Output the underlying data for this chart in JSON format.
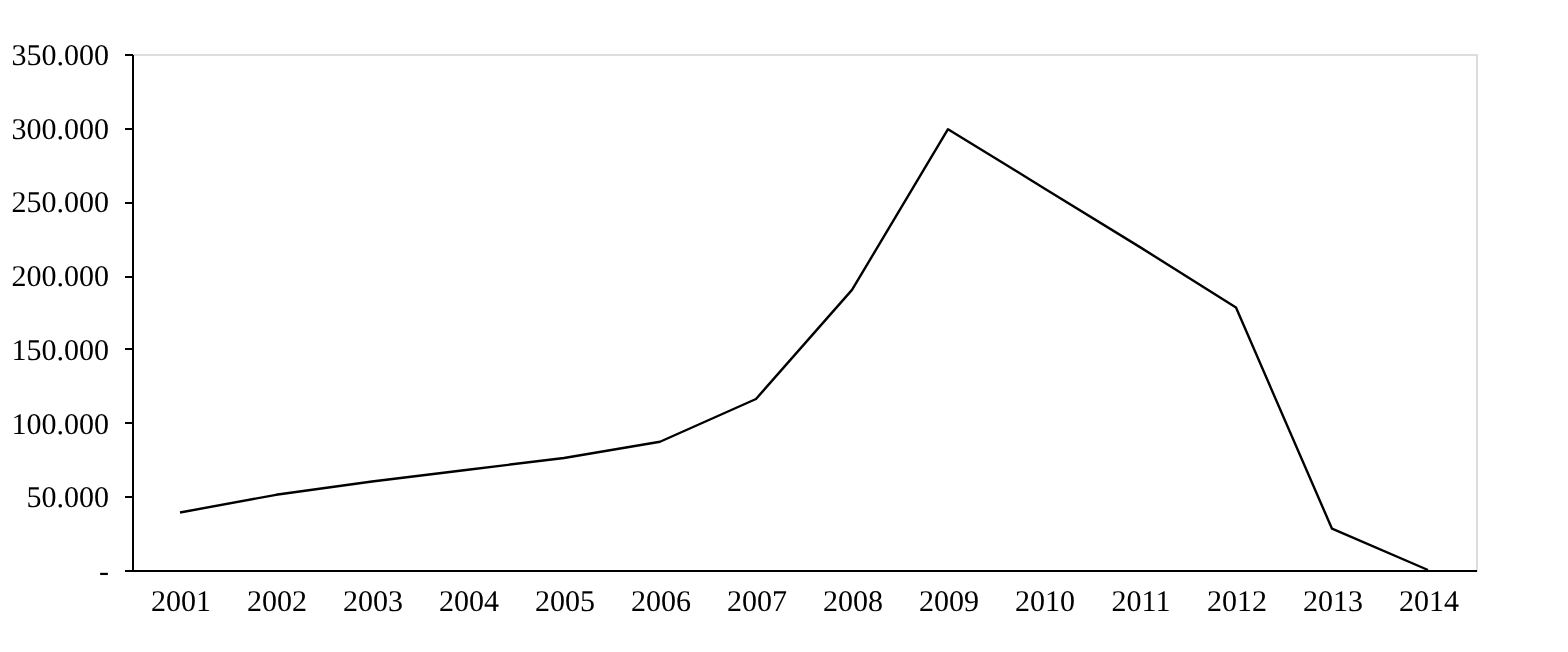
{
  "chart_data": {
    "type": "line",
    "categories": [
      "2001",
      "2002",
      "2003",
      "2004",
      "2005",
      "2006",
      "2007",
      "2008",
      "2009",
      "2010",
      "2011",
      "2012",
      "2013",
      "2014"
    ],
    "series": [
      {
        "color": "#000000",
        "values": [
          39,
          51,
          60,
          68,
          76,
          87,
          116,
          190,
          299,
          259,
          219,
          178,
          28,
          0
        ]
      }
    ],
    "ylim": [
      0,
      350
    ],
    "yticks": [
      {
        "value": 0,
        "label": "-"
      },
      {
        "value": 50,
        "label": "50.000"
      },
      {
        "value": 100,
        "label": "100.000"
      },
      {
        "value": 150,
        "label": "150.000"
      },
      {
        "value": 200,
        "label": "200.000"
      },
      {
        "value": 250,
        "label": "250.000"
      },
      {
        "value": 300,
        "label": "300.000"
      },
      {
        "value": 350,
        "label": "350.000"
      }
    ],
    "grid": false,
    "legend": false,
    "marker": "none",
    "line_style": "solid"
  }
}
